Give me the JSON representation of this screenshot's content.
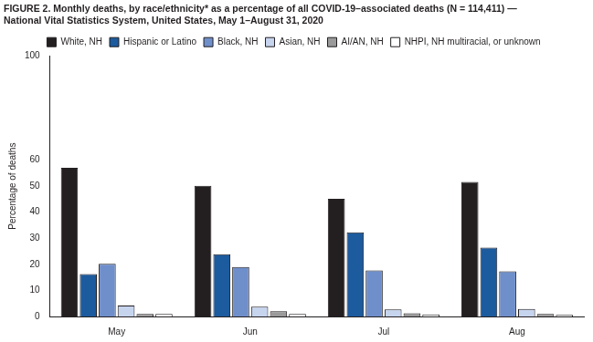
{
  "chart_data": {
    "type": "bar",
    "title": "FIGURE 2. Monthly deaths, by race/ethnicity* as a percentage of all COVID-19–associated deaths (N = 114,411) — National Vital Statistics System, United States, May 1–August 31, 2020",
    "y_label": "Percentage of deaths",
    "categories": [
      "May",
      "Jun",
      "Jul",
      "Aug"
    ],
    "series": [
      {
        "name": "White, NH",
        "color": "#231f20",
        "values": [
          57,
          50.1,
          45.1,
          51.6
        ]
      },
      {
        "name": "Hispanic or Latino",
        "color": "#1c5b9e",
        "values": [
          16.3,
          23.9,
          32.3,
          26.4
        ]
      },
      {
        "name": "Black, NH",
        "color": "#6f8fcb",
        "values": [
          20.2,
          19.0,
          17.7,
          17.3
        ]
      },
      {
        "name": "Asian, NH",
        "color": "#c6d4ee",
        "values": [
          4.2,
          3.8,
          2.7,
          2.9
        ]
      },
      {
        "name": "AI/AN, NH",
        "color": "#9a9a9a",
        "values": [
          1.0,
          2.0,
          1.2,
          1.0
        ]
      },
      {
        "name": "NHPI, NH multiracial, or unknown",
        "color": "#ffffff",
        "values": [
          1.0,
          1.0,
          0.8,
          0.6
        ]
      }
    ],
    "ylim": [
      0,
      100
    ],
    "yticks": [
      0,
      10,
      20,
      30,
      40,
      50,
      60,
      100
    ],
    "grid": false,
    "legend": "top"
  }
}
